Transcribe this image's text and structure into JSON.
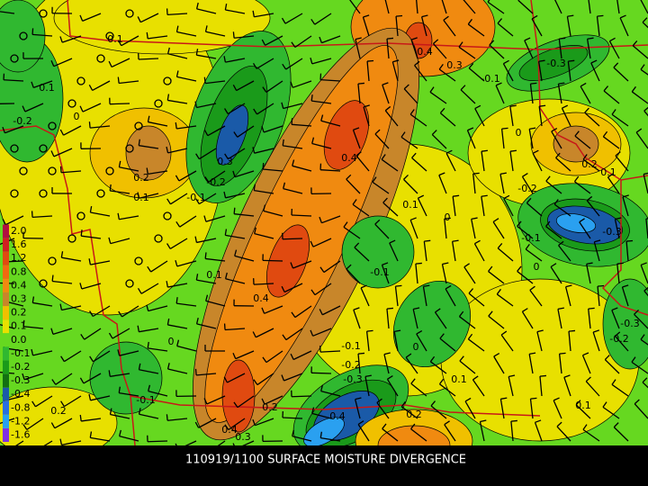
{
  "map_title": "110919/1100 SURFACE MOISTURE DIVERGENCE",
  "legend_labels": [
    "2.0",
    "1.6",
    "1.2",
    "0.8",
    "0.4",
    "0.3",
    "0.2",
    "0.1",
    "0.0",
    "-0.1",
    "-0.2",
    "-0.3",
    "-0.4",
    "-0.8",
    "-1.2",
    "-1.6"
  ],
  "contour_labels": [
    "0.1",
    "0.1",
    "-0.2",
    "0",
    "0.3",
    "-0.2",
    "-0.1",
    "0.2",
    "0.1",
    "0.4",
    "0.3",
    "-0.1",
    "-0.3",
    "0",
    "0.4",
    "0.1",
    "0",
    "-0.2",
    "0.2",
    "0.1",
    "-0.3",
    "-0.1",
    "0",
    "-0.1",
    "0.1",
    "0.4",
    "0",
    "-0.1",
    "0",
    "-0.2",
    "-0.3",
    "0.1",
    "-0.3",
    "-0.2",
    "-0.1",
    "0.2",
    "0.2",
    "0.4",
    "0.2",
    "0.1",
    "0.4",
    "0.3"
  ]
}
